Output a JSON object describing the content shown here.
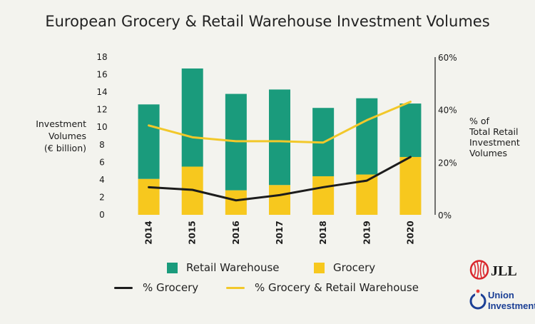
{
  "chart_data": {
    "type": "bar+line",
    "title": "European Grocery & Retail Warehouse Investment Volumes",
    "categories": [
      "2014",
      "2015",
      "2016",
      "2017",
      "2018",
      "2019",
      "2020"
    ],
    "stacked": true,
    "y_left": {
      "label_lines": [
        "Investment",
        "Volumes",
        "(€ billion)"
      ],
      "ylim": [
        0,
        18
      ],
      "ticks": [
        "0",
        "2",
        "4",
        "6",
        "8",
        "10",
        "12",
        "14",
        "16",
        "18"
      ]
    },
    "y_right": {
      "label_lines": [
        "% of",
        "Total Retail",
        "Investment",
        "Volumes"
      ],
      "ylim": [
        0,
        60
      ],
      "ticks": [
        "0%",
        "20%",
        "40%",
        "60%"
      ]
    },
    "series": [
      {
        "name": "Grocery",
        "kind": "bar",
        "axis": "left",
        "color": "#f7c81e",
        "values": [
          4.1,
          5.5,
          2.8,
          3.4,
          4.4,
          4.6,
          6.6
        ]
      },
      {
        "name": "Retail Warehouse",
        "kind": "bar",
        "axis": "left",
        "color": "#1a9b7c",
        "values": [
          8.5,
          11.2,
          11.0,
          10.9,
          7.8,
          8.7,
          6.1
        ]
      },
      {
        "name": "% Grocery",
        "kind": "line",
        "axis": "right",
        "color": "#1c1c1c",
        "values": [
          10.5,
          9.5,
          5.5,
          7.5,
          10.5,
          13,
          22
        ]
      },
      {
        "name": "% Grocery & Retail Warehouse",
        "kind": "line",
        "axis": "right",
        "color": "#f2c82a",
        "values": [
          34,
          29.5,
          28,
          28,
          27.5,
          36,
          43
        ]
      }
    ],
    "grid": false,
    "legend_position": "bottom"
  },
  "legend": {
    "retail_warehouse": "Retail Warehouse",
    "grocery": "Grocery",
    "pct_grocery": "% Grocery",
    "pct_grocery_rw": "% Grocery & Retail Warehouse"
  },
  "logos": {
    "jll": "JLL",
    "union_line1": "Union",
    "union_line2": "Investment"
  }
}
